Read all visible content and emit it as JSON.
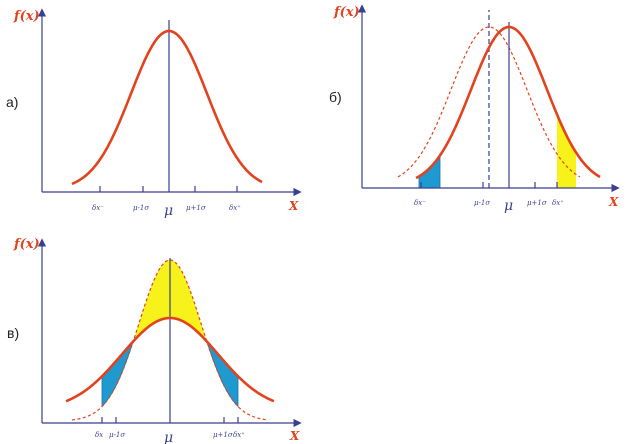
{
  "panels": [
    {
      "id": "a",
      "label": "а)",
      "y_axis_label": "f(x)",
      "x_axis_label": "X",
      "ticks": [
        "δx⁻",
        "μ-1σ",
        "μ",
        "μ+1σ",
        "δx⁺"
      ]
    },
    {
      "id": "b",
      "label": "б)",
      "y_axis_label": "f(x)",
      "x_axis_label": "X",
      "ticks": [
        "δx⁻",
        "μ-1σ",
        "μ",
        "μ+1σ",
        "δx⁺"
      ]
    },
    {
      "id": "v",
      "label": "в)",
      "y_axis_label": "f(x)",
      "x_axis_label": "X",
      "ticks": [
        "δx",
        "μ-1σ",
        "μ",
        "μ+1σ",
        "δx⁺"
      ]
    }
  ],
  "colors": {
    "curve": "#e2431e",
    "axis": "#3a3f8f",
    "blue_fill": "#1e9ad0",
    "yellow_fill": "#f7f21a"
  }
}
